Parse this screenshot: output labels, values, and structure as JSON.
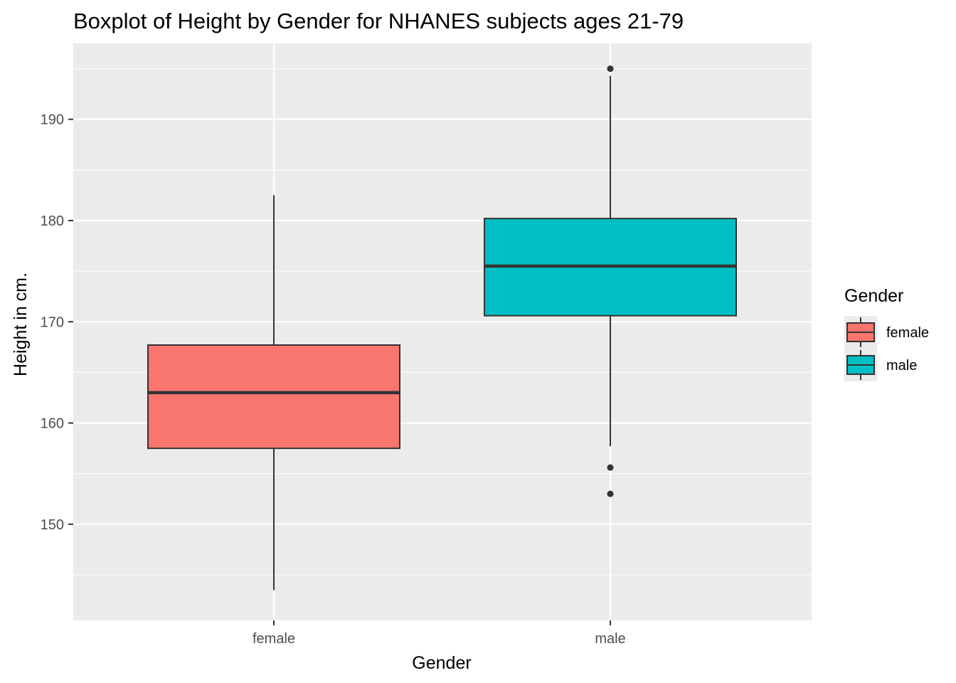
{
  "chart_data": {
    "type": "boxplot",
    "title": "Boxplot of Height by Gender for NHANES subjects ages 21-79",
    "xlabel": "Gender",
    "ylabel": "Height in cm.",
    "categories": [
      "female",
      "male"
    ],
    "ylim": [
      140.5,
      197.5
    ],
    "y_ticks": [
      150,
      160,
      170,
      180,
      190
    ],
    "y_tick_labels": [
      "150",
      "160",
      "170",
      "180",
      "190"
    ],
    "grid": true,
    "boxes": [
      {
        "name": "female",
        "whisker_low": 143.5,
        "q1": 157.5,
        "median": 163.0,
        "q3": 167.7,
        "whisker_high": 182.5,
        "outliers": [],
        "color": "#F8766D"
      },
      {
        "name": "male",
        "whisker_low": 157.7,
        "q1": 170.6,
        "median": 175.5,
        "q3": 180.2,
        "whisker_high": 194.3,
        "outliers": [
          195.0,
          155.6,
          153.0
        ],
        "color": "#00BFC4"
      }
    ],
    "legend": {
      "title": "Gender",
      "position": "right",
      "items": [
        {
          "label": "female",
          "color": "#F8766D"
        },
        {
          "label": "male",
          "color": "#00BFC4"
        }
      ]
    }
  },
  "colors": {
    "panel_background": "#EBEBEB",
    "grid_major": "#FFFFFF",
    "box_outline": "#333333",
    "tick_text": "#4D4D4D"
  }
}
